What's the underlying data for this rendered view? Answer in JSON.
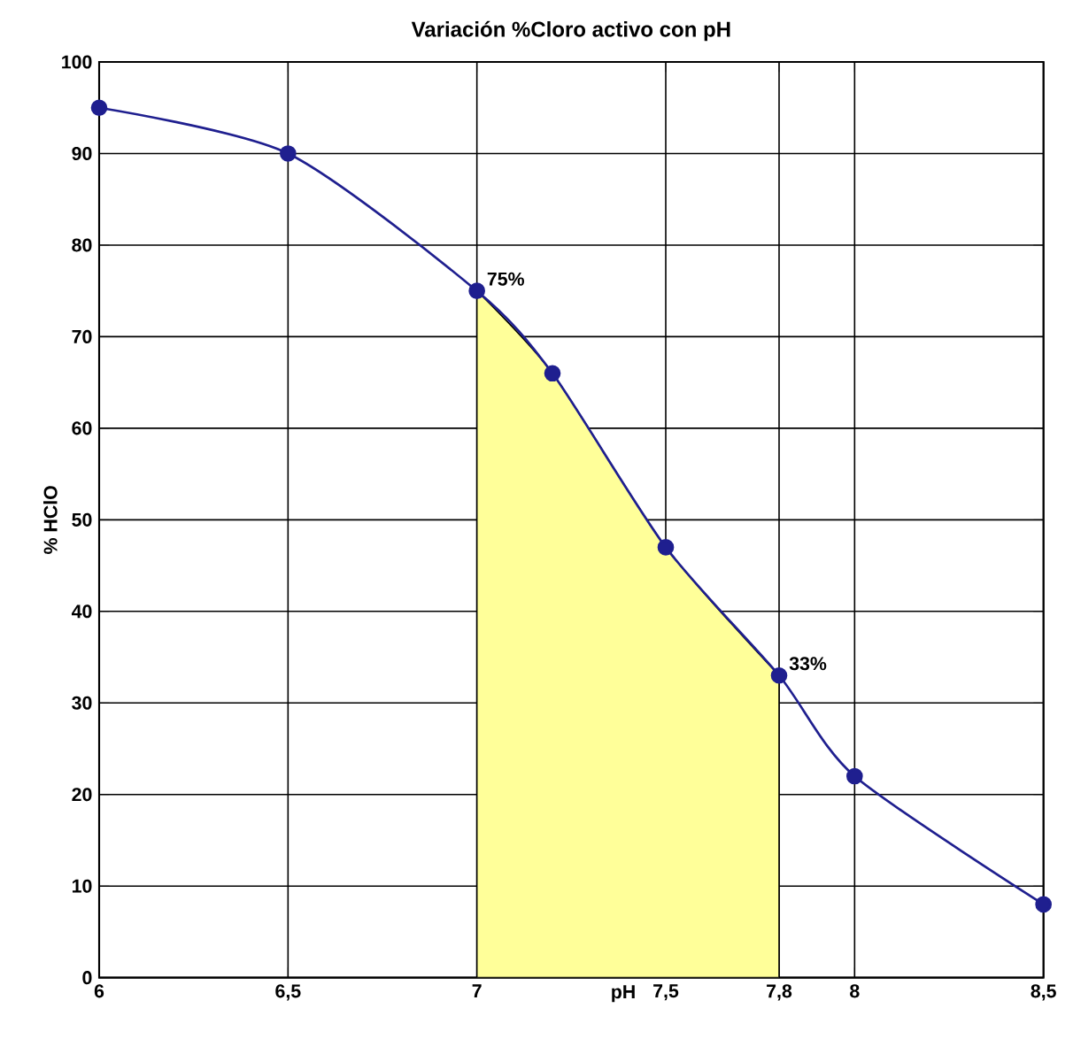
{
  "chart_data": {
    "type": "line",
    "title": "Variación %Cloro activo con pH",
    "xlabel": "pH",
    "ylabel": "% HClO",
    "series": [
      {
        "type": "area",
        "color": "#ffff99",
        "x": [
          7,
          7.2,
          7.5,
          7.8
        ],
        "values": [
          75,
          66,
          47,
          33
        ]
      },
      {
        "color": "#1f1f8f",
        "marker": "circle",
        "x": [
          6,
          6.5,
          7,
          7.2,
          7.5,
          7.8,
          8,
          8.5
        ],
        "values": [
          95,
          90,
          75,
          66,
          47,
          33,
          22,
          8
        ]
      }
    ],
    "grid": true,
    "xlim": [
      6,
      8.5
    ],
    "xticks": [
      6,
      {
        "value": 6.5,
        "label": "6,5"
      },
      7,
      {
        "value": 7.5,
        "label": "7,5"
      },
      {
        "value": 7.8,
        "label": "7,8"
      },
      8,
      {
        "value": 8.5,
        "label": "8,5"
      }
    ],
    "ylim": [
      0,
      100
    ],
    "yticks": [
      0,
      10,
      20,
      30,
      40,
      50,
      60,
      70,
      80,
      90,
      100
    ],
    "annotations": [
      {
        "text": "75%",
        "x": 7,
        "y": 75
      },
      {
        "text": "33%",
        "x": 7.8,
        "y": 33
      }
    ]
  }
}
